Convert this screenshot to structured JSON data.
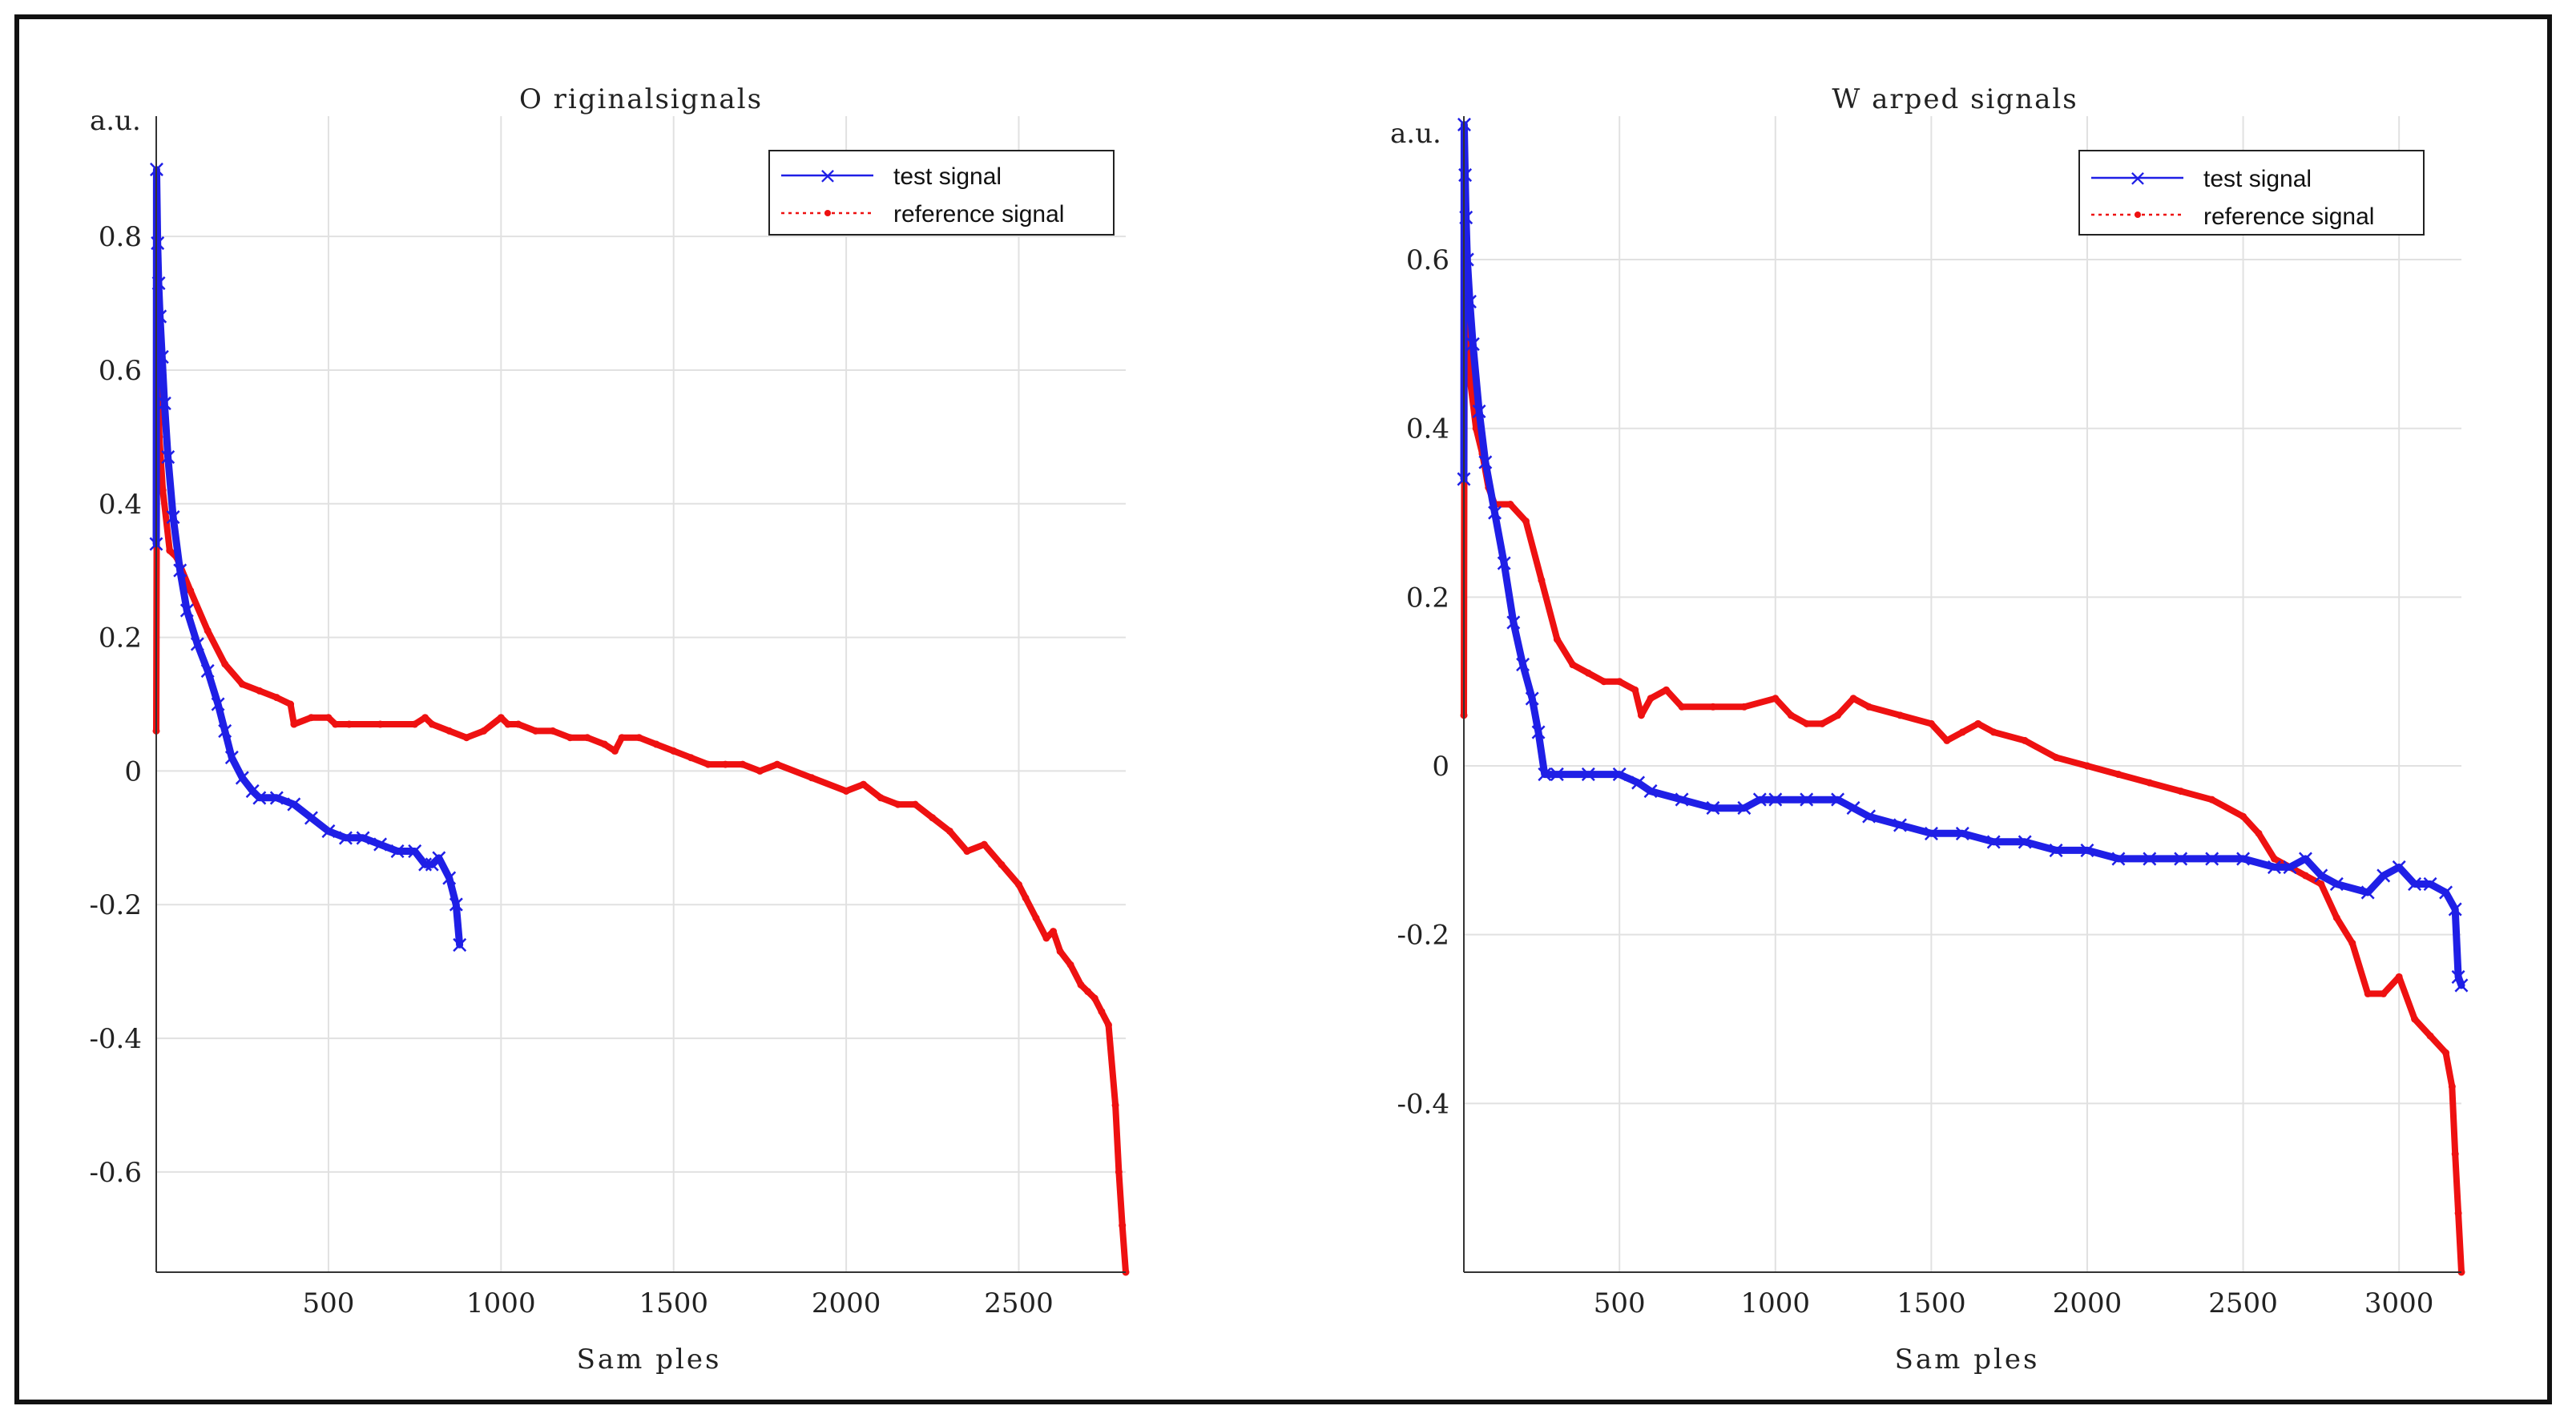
{
  "colors": {
    "test": "#1f1fe6",
    "reference": "#ee1111",
    "grid": "#e1e1e1",
    "axis": "#333333"
  },
  "chart_data": [
    {
      "type": "line",
      "title": "O riginalsignals",
      "xlabel": "Sam ples",
      "ylabel": "a.u.",
      "xlim": [
        1,
        2810
      ],
      "ylim": [
        -0.75,
        0.98
      ],
      "xticks": [
        500,
        1000,
        1500,
        2000,
        2500
      ],
      "xtick_labels": [
        "500",
        "1000",
        "1500",
        "2000",
        "2500"
      ],
      "yticks": [
        -0.6,
        -0.4,
        -0.2,
        0,
        0.2,
        0.4,
        0.6,
        0.8
      ],
      "ytick_labels": [
        "-0.6",
        "-0.4",
        "-0.2",
        "0",
        "0.2",
        "0.4",
        "0.6",
        "0.8"
      ],
      "grid": true,
      "legend_position": "top-right",
      "series": [
        {
          "name": "test signal",
          "marker": "x",
          "x": [
            1,
            2,
            5,
            8,
            12,
            18,
            25,
            35,
            50,
            70,
            90,
            120,
            150,
            180,
            200,
            220,
            250,
            280,
            300,
            350,
            400,
            450,
            500,
            550,
            600,
            650,
            700,
            750,
            780,
            800,
            820,
            850,
            870,
            880
          ],
          "y": [
            0.34,
            0.9,
            0.79,
            0.73,
            0.68,
            0.62,
            0.55,
            0.47,
            0.38,
            0.3,
            0.24,
            0.19,
            0.15,
            0.1,
            0.06,
            0.02,
            -0.01,
            -0.03,
            -0.04,
            -0.04,
            -0.05,
            -0.07,
            -0.09,
            -0.1,
            -0.1,
            -0.11,
            -0.12,
            -0.12,
            -0.14,
            -0.14,
            -0.13,
            -0.16,
            -0.2,
            -0.26
          ]
        },
        {
          "name": "reference signal",
          "marker": ".",
          "x": [
            1,
            3,
            6,
            10,
            20,
            40,
            60,
            100,
            150,
            200,
            250,
            300,
            350,
            390,
            400,
            450,
            500,
            520,
            560,
            650,
            750,
            780,
            800,
            850,
            900,
            950,
            1000,
            1020,
            1050,
            1100,
            1150,
            1200,
            1250,
            1300,
            1330,
            1350,
            1400,
            1450,
            1500,
            1550,
            1600,
            1650,
            1700,
            1750,
            1800,
            1900,
            2000,
            2050,
            2100,
            2150,
            2200,
            2250,
            2300,
            2350,
            2400,
            2450,
            2500,
            2520,
            2550,
            2580,
            2600,
            2620,
            2650,
            2680,
            2700,
            2720,
            2740,
            2760,
            2780,
            2790,
            2800,
            2810
          ],
          "y": [
            0.06,
            0.52,
            0.6,
            0.5,
            0.42,
            0.33,
            0.32,
            0.27,
            0.21,
            0.16,
            0.13,
            0.12,
            0.11,
            0.1,
            0.07,
            0.08,
            0.08,
            0.07,
            0.07,
            0.07,
            0.07,
            0.08,
            0.07,
            0.06,
            0.05,
            0.06,
            0.08,
            0.07,
            0.07,
            0.06,
            0.06,
            0.05,
            0.05,
            0.04,
            0.03,
            0.05,
            0.05,
            0.04,
            0.03,
            0.02,
            0.01,
            0.01,
            0.01,
            0.0,
            0.01,
            -0.01,
            -0.03,
            -0.02,
            -0.04,
            -0.05,
            -0.05,
            -0.07,
            -0.09,
            -0.12,
            -0.11,
            -0.14,
            -0.17,
            -0.19,
            -0.22,
            -0.25,
            -0.24,
            -0.27,
            -0.29,
            -0.32,
            -0.33,
            -0.34,
            -0.36,
            -0.38,
            -0.5,
            -0.6,
            -0.68,
            -0.75
          ]
        }
      ]
    },
    {
      "type": "line",
      "title": "W arped signals",
      "xlabel": "Sam ples",
      "ylabel": "a.u.",
      "xlim": [
        1,
        3200
      ],
      "ylim": [
        -0.6,
        0.77
      ],
      "xticks": [
        500,
        1000,
        1500,
        2000,
        2500,
        3000
      ],
      "xtick_labels": [
        "500",
        "1000",
        "1500",
        "2000",
        "2500",
        "3000"
      ],
      "yticks": [
        -0.4,
        -0.2,
        0,
        0.2,
        0.4,
        0.6
      ],
      "ytick_labels": [
        "-0.4",
        "-0.2",
        "0",
        "0.2",
        "0.4",
        "0.6"
      ],
      "grid": true,
      "legend_position": "top-right",
      "series": [
        {
          "name": "test signal",
          "marker": "x",
          "x": [
            1,
            2,
            5,
            8,
            12,
            20,
            30,
            50,
            70,
            100,
            130,
            160,
            190,
            220,
            240,
            260,
            300,
            400,
            500,
            560,
            600,
            700,
            800,
            900,
            950,
            1000,
            1100,
            1200,
            1250,
            1300,
            1400,
            1500,
            1600,
            1700,
            1800,
            1900,
            2000,
            2100,
            2200,
            2300,
            2400,
            2500,
            2600,
            2650,
            2700,
            2750,
            2800,
            2900,
            2950,
            3000,
            3050,
            3100,
            3150,
            3180,
            3190,
            3200
          ],
          "y": [
            0.34,
            0.76,
            0.7,
            0.65,
            0.6,
            0.55,
            0.5,
            0.42,
            0.36,
            0.3,
            0.24,
            0.17,
            0.12,
            0.08,
            0.04,
            -0.01,
            -0.01,
            -0.01,
            -0.01,
            -0.02,
            -0.03,
            -0.04,
            -0.05,
            -0.05,
            -0.04,
            -0.04,
            -0.04,
            -0.04,
            -0.05,
            -0.06,
            -0.07,
            -0.08,
            -0.08,
            -0.09,
            -0.09,
            -0.1,
            -0.1,
            -0.11,
            -0.11,
            -0.11,
            -0.11,
            -0.11,
            -0.12,
            -0.12,
            -0.11,
            -0.13,
            -0.14,
            -0.15,
            -0.13,
            -0.12,
            -0.14,
            -0.14,
            -0.15,
            -0.17,
            -0.25,
            -0.26
          ]
        },
        {
          "name": "reference signal",
          "marker": ".",
          "x": [
            1,
            3,
            6,
            10,
            20,
            40,
            60,
            80,
            100,
            150,
            200,
            250,
            300,
            350,
            400,
            450,
            500,
            550,
            570,
            600,
            650,
            700,
            800,
            900,
            1000,
            1050,
            1100,
            1150,
            1200,
            1250,
            1300,
            1400,
            1500,
            1550,
            1600,
            1650,
            1700,
            1800,
            1900,
            2000,
            2100,
            2200,
            2300,
            2400,
            2500,
            2550,
            2600,
            2650,
            2700,
            2750,
            2800,
            2850,
            2900,
            2950,
            3000,
            3050,
            3100,
            3150,
            3170,
            3180,
            3190,
            3200
          ],
          "y": [
            0.06,
            0.52,
            0.6,
            0.5,
            0.46,
            0.4,
            0.37,
            0.33,
            0.31,
            0.31,
            0.29,
            0.22,
            0.15,
            0.12,
            0.11,
            0.1,
            0.1,
            0.09,
            0.06,
            0.08,
            0.09,
            0.07,
            0.07,
            0.07,
            0.08,
            0.06,
            0.05,
            0.05,
            0.06,
            0.08,
            0.07,
            0.06,
            0.05,
            0.03,
            0.04,
            0.05,
            0.04,
            0.03,
            0.01,
            0.0,
            -0.01,
            -0.02,
            -0.03,
            -0.04,
            -0.06,
            -0.08,
            -0.11,
            -0.12,
            -0.13,
            -0.14,
            -0.18,
            -0.21,
            -0.27,
            -0.27,
            -0.25,
            -0.3,
            -0.32,
            -0.34,
            -0.38,
            -0.46,
            -0.53,
            -0.6
          ]
        }
      ]
    }
  ]
}
